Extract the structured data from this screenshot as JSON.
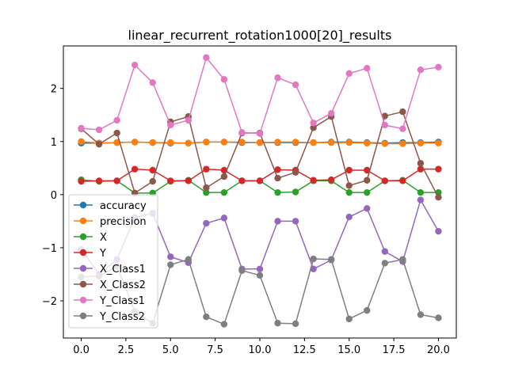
{
  "chart_data": {
    "type": "line",
    "title": "linear_recurrent_rotation1000[20]_results",
    "xlabel": "",
    "ylabel": "",
    "xlim": [
      -1.0,
      21.0
    ],
    "ylim": [
      -2.7,
      2.8
    ],
    "xticks": [
      0.0,
      2.5,
      5.0,
      7.5,
      10.0,
      12.5,
      15.0,
      17.5,
      20.0
    ],
    "xtick_labels": [
      "0.0",
      "2.5",
      "5.0",
      "7.5",
      "10.0",
      "12.5",
      "15.0",
      "17.5",
      "20.0"
    ],
    "yticks": [
      -2,
      -1,
      0,
      1,
      2
    ],
    "ytick_labels": [
      "−2",
      "−1",
      "0",
      "1",
      "2"
    ],
    "grid": false,
    "legend_position": "lower-left",
    "x": [
      0,
      1,
      2,
      3,
      4,
      5,
      6,
      7,
      8,
      9,
      10,
      11,
      12,
      13,
      14,
      15,
      16,
      17,
      18,
      19,
      20
    ],
    "series": [
      {
        "name": "accuracy",
        "color": "#1f77b4",
        "values": [
          0.97,
          0.97,
          0.98,
          0.99,
          0.98,
          0.97,
          0.97,
          0.99,
          0.99,
          0.98,
          0.98,
          0.98,
          0.98,
          0.98,
          0.99,
          0.99,
          0.98,
          0.97,
          0.98,
          0.98,
          0.99
        ]
      },
      {
        "name": "precision",
        "color": "#ff7f0e",
        "values": [
          1.0,
          0.97,
          0.98,
          0.99,
          0.98,
          0.98,
          0.97,
          0.99,
          0.99,
          0.99,
          0.98,
          0.99,
          0.99,
          0.98,
          0.98,
          0.98,
          0.97,
          0.96,
          0.96,
          0.97,
          0.97
        ]
      },
      {
        "name": "X",
        "color": "#2ca02c",
        "values": [
          0.28,
          0.25,
          0.26,
          0.03,
          0.03,
          0.25,
          0.27,
          0.04,
          0.04,
          0.26,
          0.26,
          0.04,
          0.05,
          0.26,
          0.26,
          0.04,
          0.04,
          0.26,
          0.27,
          0.04,
          0.04
        ]
      },
      {
        "name": "Y",
        "color": "#d62728",
        "values": [
          0.25,
          0.26,
          0.26,
          0.48,
          0.46,
          0.26,
          0.26,
          0.48,
          0.46,
          0.26,
          0.26,
          0.47,
          0.46,
          0.27,
          0.28,
          0.46,
          0.46,
          0.26,
          0.26,
          0.48,
          0.48
        ]
      },
      {
        "name": "X_Class1",
        "color": "#9467bd",
        "values": [
          -1.03,
          -1.5,
          -1.22,
          -0.43,
          -0.35,
          -1.17,
          -1.28,
          -0.54,
          -0.44,
          -1.4,
          -1.4,
          -0.5,
          -0.5,
          -1.4,
          -1.23,
          -0.42,
          -0.26,
          -1.07,
          -1.26,
          -0.1,
          -0.69
        ]
      },
      {
        "name": "X_Class2",
        "color": "#8c564b",
        "values": [
          1.24,
          0.95,
          1.16,
          0.03,
          0.25,
          1.37,
          1.47,
          0.13,
          0.34,
          1.16,
          1.16,
          0.31,
          0.42,
          1.26,
          1.47,
          0.17,
          0.27,
          1.48,
          1.56,
          0.59,
          -0.05
        ]
      },
      {
        "name": "Y_Class1",
        "color": "#e377c2",
        "values": [
          1.25,
          1.22,
          1.4,
          2.44,
          2.11,
          1.31,
          1.4,
          2.58,
          2.17,
          1.17,
          1.15,
          2.2,
          2.07,
          1.35,
          1.53,
          2.28,
          2.38,
          1.31,
          1.24,
          2.35,
          2.4
        ]
      },
      {
        "name": "Y_Class2",
        "color": "#7f7f7f",
        "values": [
          -1.55,
          -1.53,
          -1.35,
          -2.2,
          -2.42,
          -1.32,
          -1.22,
          -2.3,
          -2.44,
          -1.43,
          -1.52,
          -2.42,
          -2.43,
          -1.21,
          -1.22,
          -2.34,
          -2.18,
          -1.29,
          -1.22,
          -2.26,
          -2.32
        ]
      }
    ]
  }
}
